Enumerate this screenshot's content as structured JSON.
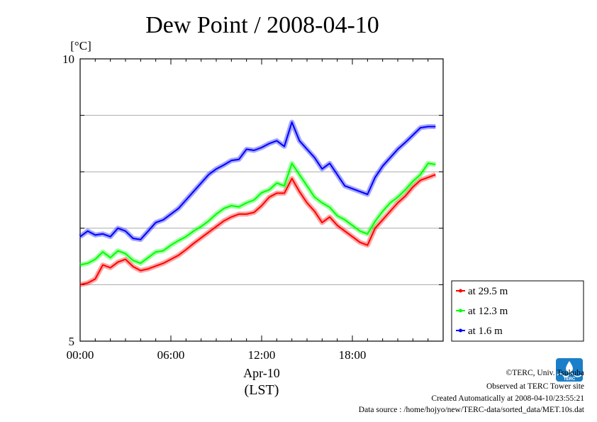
{
  "chart_data": {
    "type": "line",
    "title": "Dew Point / 2008-04-10",
    "ylabel": "[°C]",
    "xlabel_line1": "Apr-10",
    "xlabel_line2": "(LST)",
    "xlim": [
      0,
      24
    ],
    "ylim": [
      5,
      10
    ],
    "y_ticks": [
      "10",
      "5"
    ],
    "y_grid": [
      6,
      7,
      8,
      9
    ],
    "x_ticks": [
      "00:00",
      "06:00",
      "12:00",
      "18:00"
    ],
    "x_tick_values": [
      0,
      6,
      12,
      18
    ],
    "grid": "horizontal",
    "legend_position": "bottom-right",
    "x_hours": [
      0,
      0.5,
      1,
      1.5,
      2,
      2.5,
      3,
      3.5,
      4,
      4.5,
      5,
      5.5,
      6,
      6.5,
      7,
      7.5,
      8,
      8.5,
      9,
      9.5,
      10,
      10.5,
      11,
      11.5,
      12,
      12.5,
      13,
      13.5,
      14,
      14.5,
      15,
      15.5,
      16,
      16.5,
      17,
      17.5,
      18,
      18.5,
      19,
      19.5,
      20,
      20.5,
      21,
      21.5,
      22,
      22.5,
      23,
      23.5
    ],
    "series": [
      {
        "name": "at 29.5 m",
        "color": "#ff0000",
        "values": [
          6.0,
          6.03,
          6.1,
          6.35,
          6.3,
          6.4,
          6.45,
          6.32,
          6.25,
          6.28,
          6.33,
          6.38,
          6.45,
          6.52,
          6.62,
          6.73,
          6.83,
          6.93,
          7.03,
          7.13,
          7.2,
          7.25,
          7.25,
          7.28,
          7.4,
          7.55,
          7.62,
          7.62,
          7.88,
          7.65,
          7.45,
          7.3,
          7.1,
          7.2,
          7.05,
          6.95,
          6.85,
          6.75,
          6.7,
          7.0,
          7.15,
          7.3,
          7.45,
          7.57,
          7.73,
          7.85,
          7.9,
          7.95
        ]
      },
      {
        "name": "at 12.3 m",
        "color": "#00ff00",
        "values": [
          6.35,
          6.38,
          6.45,
          6.58,
          6.48,
          6.6,
          6.55,
          6.43,
          6.38,
          6.48,
          6.58,
          6.6,
          6.7,
          6.78,
          6.85,
          6.95,
          7.03,
          7.13,
          7.25,
          7.35,
          7.4,
          7.38,
          7.45,
          7.5,
          7.63,
          7.68,
          7.8,
          7.75,
          8.15,
          7.95,
          7.75,
          7.55,
          7.45,
          7.37,
          7.22,
          7.15,
          7.05,
          6.95,
          6.9,
          7.12,
          7.3,
          7.45,
          7.55,
          7.68,
          7.83,
          7.95,
          8.15,
          8.13
        ]
      },
      {
        "name": "at 1.6 m",
        "color": "#0000ff",
        "values": [
          6.85,
          6.95,
          6.88,
          6.9,
          6.85,
          7.0,
          6.95,
          6.82,
          6.8,
          6.95,
          7.1,
          7.15,
          7.25,
          7.35,
          7.5,
          7.65,
          7.8,
          7.95,
          8.05,
          8.12,
          8.2,
          8.22,
          8.4,
          8.38,
          8.43,
          8.5,
          8.55,
          8.45,
          8.88,
          8.55,
          8.4,
          8.25,
          8.05,
          8.15,
          7.95,
          7.75,
          7.7,
          7.65,
          7.6,
          7.9,
          8.1,
          8.25,
          8.4,
          8.52,
          8.65,
          8.78,
          8.8,
          8.8
        ]
      }
    ]
  },
  "footer": {
    "copyright": "©TERC, Univ. Tsukuba",
    "observed": "Observed at TERC Tower site",
    "created": "Created Automatically at 2008-04-10/23:55:21",
    "source": "Data source : /home/hojyo/new/TERC-data/sorted_data/MET.10s.dat",
    "logo_text": "TERC"
  }
}
